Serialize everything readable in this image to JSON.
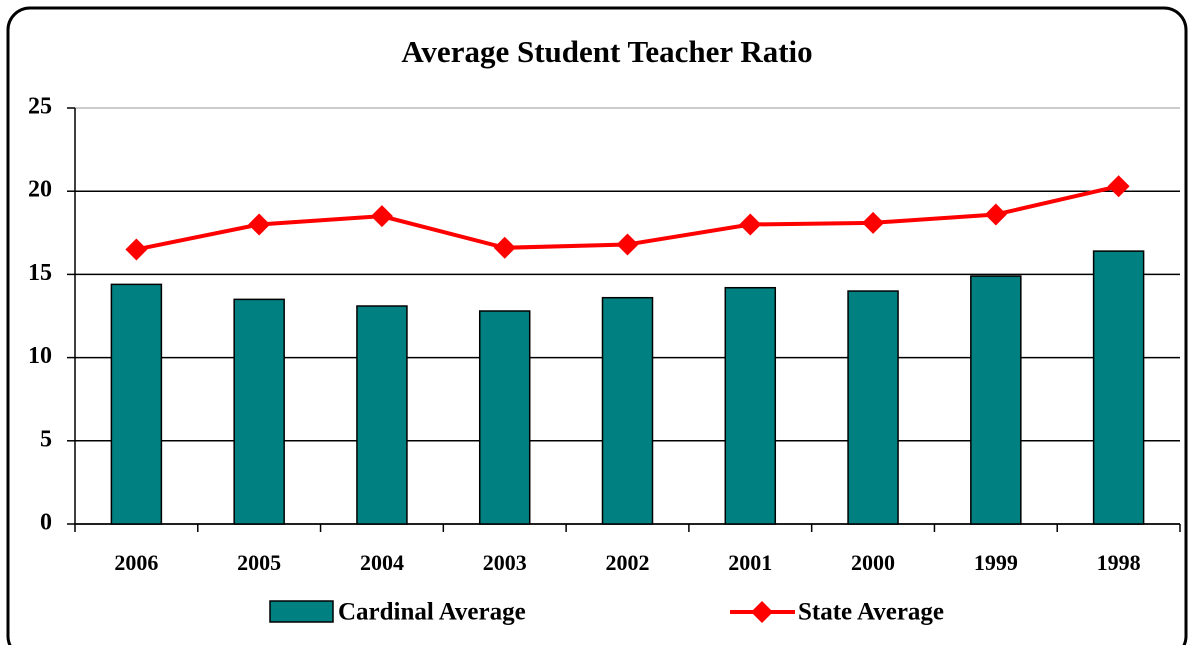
{
  "chart_data": {
    "type": "bar",
    "title": "Average Student Teacher Ratio",
    "categories": [
      "2006",
      "2005",
      "2004",
      "2003",
      "2002",
      "2001",
      "2000",
      "1999",
      "1998"
    ],
    "series": [
      {
        "name": "Cardinal Average",
        "type": "bar",
        "color": "#008080",
        "values": [
          14.4,
          13.5,
          13.1,
          12.8,
          13.6,
          14.2,
          14.0,
          14.9,
          16.4
        ]
      },
      {
        "name": "State Average",
        "type": "line",
        "color": "#ff0000",
        "values": [
          16.5,
          18.0,
          18.5,
          16.6,
          16.8,
          18.0,
          18.1,
          18.6,
          20.3
        ]
      }
    ],
    "ylim": [
      0,
      25
    ],
    "yticks": [
      0,
      5,
      10,
      15,
      20,
      25
    ],
    "grid": true,
    "legend": "bottom"
  }
}
